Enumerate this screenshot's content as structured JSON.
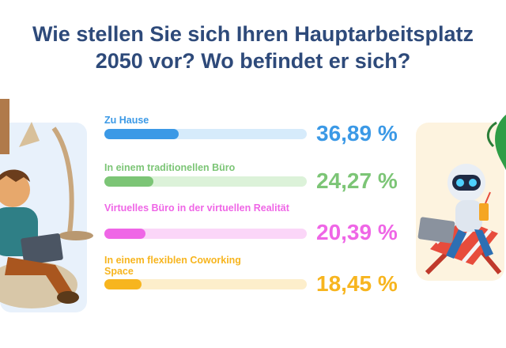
{
  "title": {
    "line1": "Wie stellen Sie sich Ihren Hauptarbeitsplatz",
    "line2": "2050 vor? Wo befindet er sich?"
  },
  "chart_data": {
    "type": "bar",
    "orientation": "horizontal",
    "title": "Wie stellen Sie sich Ihren Hauptarbeitsplatz 2050 vor? Wo befindet er sich?",
    "unit": "%",
    "ylim": [
      0,
      100
    ],
    "categories": [
      "Zu Hause",
      "In einem traditionellen Büro",
      "Virtuelles Büro in der virtuellen Realität",
      "In einem flexiblen Coworking Space"
    ],
    "values": [
      36.89,
      24.27,
      20.39,
      18.45
    ],
    "value_labels": [
      "36,89 %",
      "24,27 %",
      "20,39 %",
      "18,45 %"
    ],
    "colors": [
      "#3b99e6",
      "#7cc576",
      "#ef66e6",
      "#f7b51f"
    ],
    "track_colors": [
      "#d6ebfb",
      "#dcf2d9",
      "#fbd6f8",
      "#fdeecb"
    ],
    "grid": false,
    "legend": "none"
  },
  "illustrations": {
    "left": "person-with-laptop-and-lamp",
    "right": "robot-with-laptop-on-deckchair"
  }
}
